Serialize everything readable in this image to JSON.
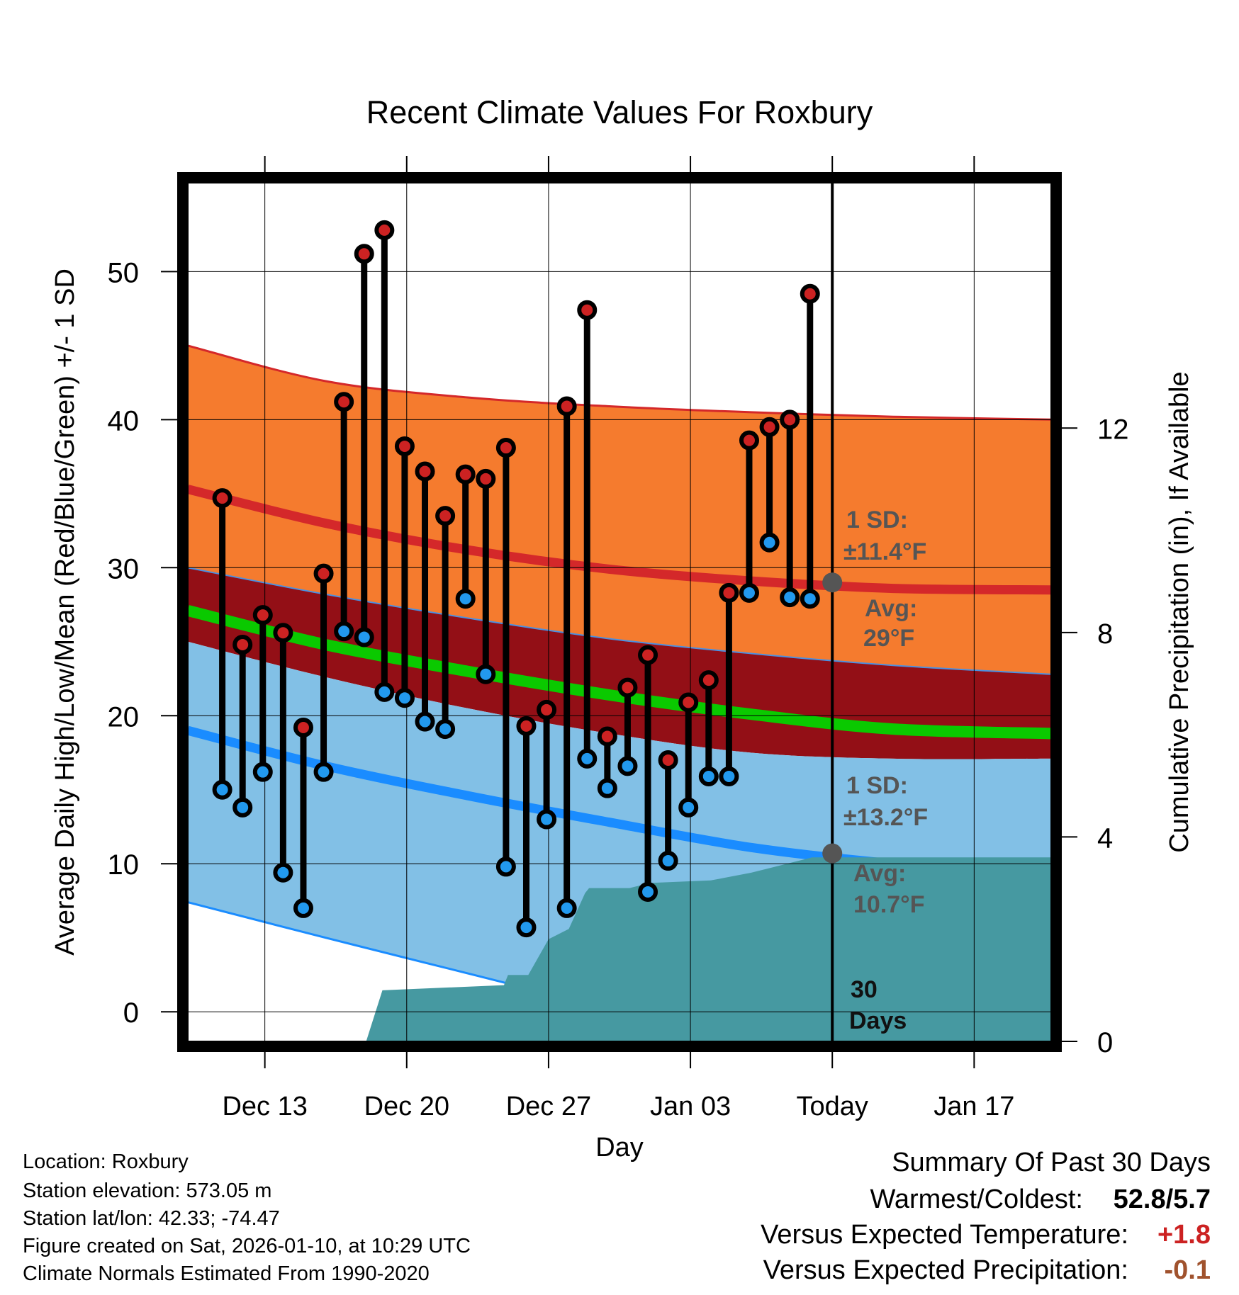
{
  "chart_data": {
    "type": "line",
    "title": "Recent Climate Values For Roxbury",
    "xlabel": "Day",
    "ylabel": "Average Daily High/Low/Mean (Red/Blue/Green) +/- 1 SD",
    "y2label": "Cumulative Precipitation (in), If Available",
    "xlim_days": [
      -1.8,
      40.8
    ],
    "ylim": [
      -2,
      56
    ],
    "y2lim": [
      0,
      16.8
    ],
    "yticks": [
      "0",
      "10",
      "20",
      "30",
      "40",
      "50"
    ],
    "y2ticks": [
      "0",
      "4",
      "8",
      "12"
    ],
    "xtick_labels": [
      {
        "day": 2,
        "label": "Dec 13"
      },
      {
        "day": 9,
        "label": "Dec 20"
      },
      {
        "day": 16,
        "label": "Dec 27"
      },
      {
        "day": 23,
        "label": "Jan 03"
      },
      {
        "day": 30,
        "label": "Today"
      },
      {
        "day": 37,
        "label": "Jan 17"
      }
    ],
    "daily": [
      {
        "day": -0.1,
        "high": 34.7,
        "low": 15.0
      },
      {
        "day": 0.9,
        "high": 24.8,
        "low": 13.8
      },
      {
        "day": 1.9,
        "high": 26.8,
        "low": 16.2
      },
      {
        "day": 2.9,
        "high": 25.6,
        "low": 9.4
      },
      {
        "day": 3.9,
        "high": 19.2,
        "low": 7.0
      },
      {
        "day": 4.9,
        "high": 29.6,
        "low": 16.2
      },
      {
        "day": 5.9,
        "high": 41.2,
        "low": 25.7
      },
      {
        "day": 6.9,
        "high": 51.2,
        "low": 25.3
      },
      {
        "day": 7.9,
        "high": 52.8,
        "low": 21.6
      },
      {
        "day": 8.9,
        "high": 38.2,
        "low": 21.2
      },
      {
        "day": 9.9,
        "high": 36.5,
        "low": 19.6
      },
      {
        "day": 10.9,
        "high": 33.5,
        "low": 19.1
      },
      {
        "day": 11.9,
        "high": 36.3,
        "low": 27.9
      },
      {
        "day": 12.9,
        "high": 36.0,
        "low": 22.8
      },
      {
        "day": 13.9,
        "high": 38.1,
        "low": 9.8
      },
      {
        "day": 14.9,
        "high": 19.3,
        "low": 5.7
      },
      {
        "day": 15.9,
        "high": 20.4,
        "low": 13.0
      },
      {
        "day": 16.9,
        "high": 40.9,
        "low": 7.0
      },
      {
        "day": 17.9,
        "high": 47.4,
        "low": 17.1
      },
      {
        "day": 18.9,
        "high": 18.6,
        "low": 15.1
      },
      {
        "day": 19.9,
        "high": 21.9,
        "low": 16.6
      },
      {
        "day": 20.9,
        "high": 24.1,
        "low": 8.1
      },
      {
        "day": 21.9,
        "high": 17.0,
        "low": 10.2
      },
      {
        "day": 22.9,
        "high": 20.9,
        "low": 13.8
      },
      {
        "day": 23.9,
        "high": 22.4,
        "low": 15.9
      },
      {
        "day": 24.9,
        "high": 28.3,
        "low": 15.9
      },
      {
        "day": 25.9,
        "high": 38.6,
        "low": 28.3
      },
      {
        "day": 26.9,
        "high": 39.5,
        "low": 31.7
      },
      {
        "day": 27.9,
        "high": 40.0,
        "low": 28.0
      },
      {
        "day": 28.9,
        "high": 48.5,
        "low": 27.9
      }
    ],
    "normals": {
      "days": [
        -1.8,
        5,
        12,
        19,
        26,
        33,
        40.8
      ],
      "high_mean": [
        35.3,
        33.0,
        31.2,
        29.9,
        29.1,
        28.6,
        28.5
      ],
      "high_plus_sd": [
        45.0,
        42.6,
        41.5,
        40.9,
        40.5,
        40.2,
        40.0
      ],
      "low_mean": [
        19.0,
        16.6,
        14.6,
        12.8,
        11.1,
        10.0,
        9.1
      ],
      "low_minus_sd": [
        7.4,
        5.0,
        2.6,
        0.2,
        -2.0,
        -2.0,
        -2.0
      ],
      "mean": [
        27.1,
        24.8,
        23.0,
        21.4,
        20.1,
        19.1,
        18.8
      ],
      "mid_upper": [
        30.0,
        28.2,
        26.6,
        25.2,
        24.2,
        23.4,
        22.8
      ],
      "mid_lower": [
        25.0,
        22.6,
        20.5,
        18.8,
        17.5,
        17.1,
        17.1
      ]
    },
    "precip_cumulative": {
      "days": [
        7.0,
        7.8,
        13.8,
        14.0,
        15.0,
        16.0,
        17.0,
        17.8,
        18.0,
        20.0,
        21.0,
        24.0,
        26.0,
        27.0,
        28.0,
        29.0,
        40.8
      ],
      "values": [
        0.0,
        1.0,
        1.1,
        1.3,
        1.3,
        2.0,
        2.2,
        2.9,
        3.0,
        3.0,
        3.1,
        3.15,
        3.3,
        3.4,
        3.5,
        3.6,
        3.6
      ]
    },
    "today": {
      "day": 30,
      "avg_high": 29,
      "avg_low": 10.7,
      "high_sd_label": "1 SD:",
      "high_sd_value": "±11.4°F",
      "high_avg_label": "Avg:",
      "high_avg_value": "29°F",
      "low_sd_label": "1 SD:",
      "low_sd_value": "±13.2°F",
      "low_avg_label": "Avg:",
      "low_avg_value": "10.7°F",
      "window_number": "30",
      "window_unit": "Days"
    },
    "colors": {
      "high_band": "#f57b2e",
      "high_line": "#d4282a",
      "mid_band": "#930f16",
      "mean_line": "#0ac900",
      "low_band": "#82c0e6",
      "low_line": "#1a8cff",
      "precip": "#4699a1",
      "annotation": "#555555",
      "high_dot": "#cc2222",
      "low_dot": "#2299ee"
    }
  },
  "info": {
    "location": "Location: Roxbury",
    "elevation": "Station elevation: 573.05 m",
    "latlon": "Station lat/lon: 42.33; -74.47",
    "created": "Figure created on Sat, 2026-01-10, at 10:29 UTC",
    "normals": "Climate Normals Estimated From 1990-2020"
  },
  "summary": {
    "title": "Summary Of Past 30 Days",
    "warm_cold_label": "Warmest/Coldest:",
    "warm_cold_value": "52.8/5.7",
    "temp_label": "Versus Expected Temperature:",
    "temp_value": "+1.8",
    "temp_color": "#cc2222",
    "precip_label": "Versus Expected Precipitation:",
    "precip_value": "-0.1",
    "precip_color": "#a0522d"
  }
}
